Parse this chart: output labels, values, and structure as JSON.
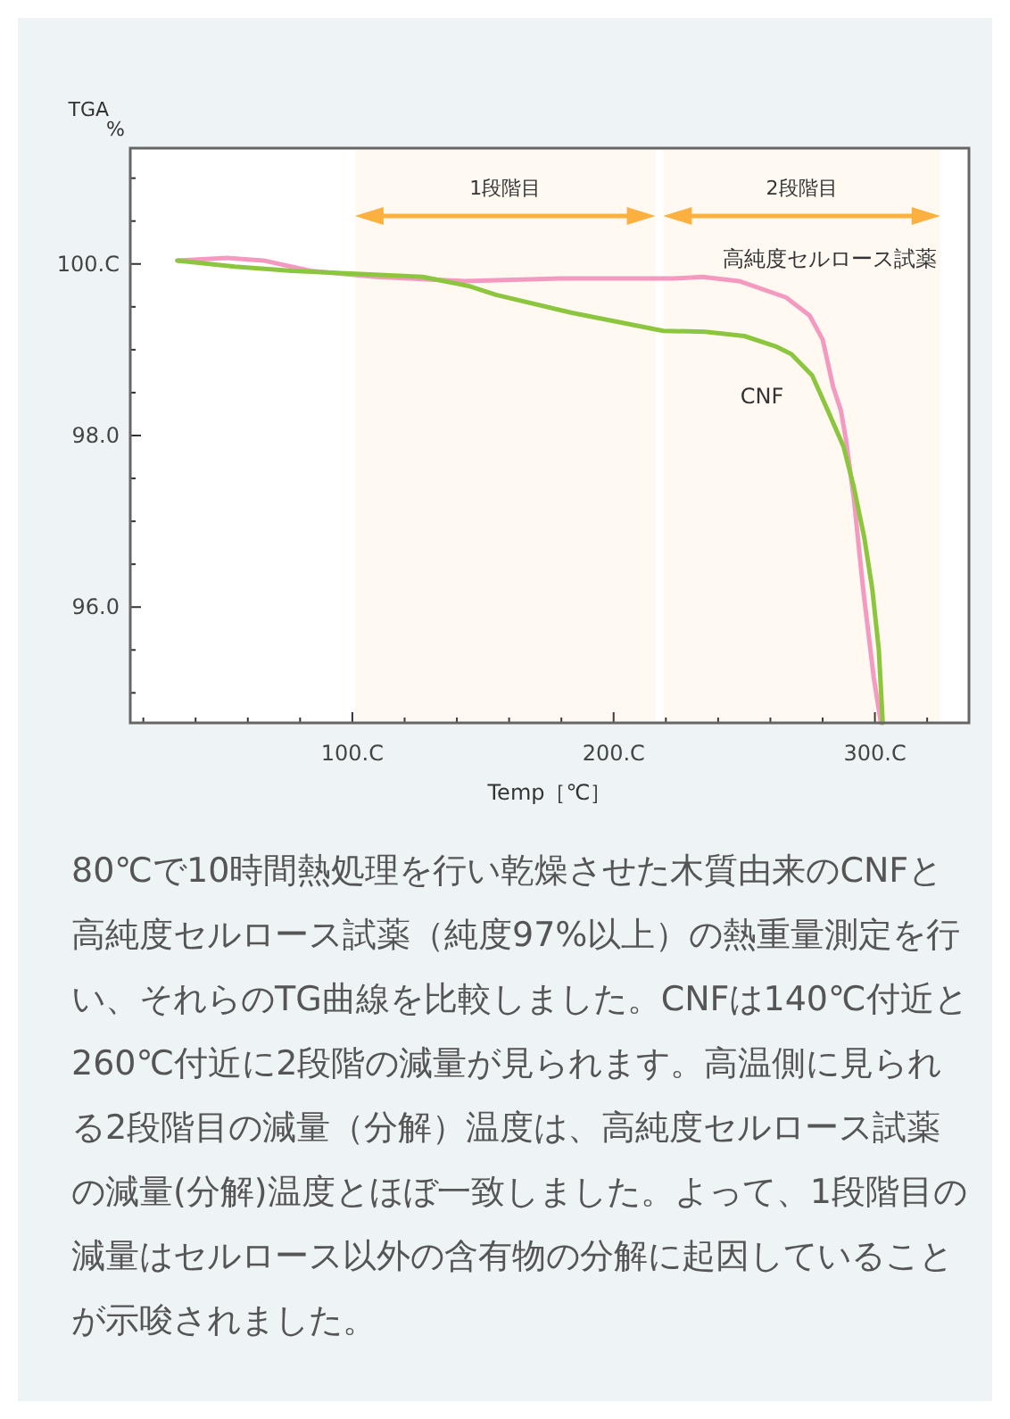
{
  "chart_data": {
    "type": "line",
    "xlabel": "Temp［℃］",
    "ylabel": "TGA\n%",
    "xlim": [
      15,
      336
    ],
    "ylim": [
      94.65,
      101.35
    ],
    "xticks": [
      {
        "value": 20,
        "label": null
      },
      {
        "value": 40,
        "label": null
      },
      {
        "value": 60,
        "label": null
      },
      {
        "value": 80,
        "label": null
      },
      {
        "value": 100,
        "label": "100.C"
      },
      {
        "value": 120,
        "label": null
      },
      {
        "value": 140,
        "label": null
      },
      {
        "value": 160,
        "label": null
      },
      {
        "value": 180,
        "label": null
      },
      {
        "value": 200,
        "label": "200.C"
      },
      {
        "value": 220,
        "label": null
      },
      {
        "value": 240,
        "label": null
      },
      {
        "value": 260,
        "label": null
      },
      {
        "value": 280,
        "label": null
      },
      {
        "value": 300,
        "label": "300.C"
      },
      {
        "value": 320,
        "label": null
      }
    ],
    "yticks": [
      {
        "value": 95,
        "label": null
      },
      {
        "value": 95.5,
        "label": null
      },
      {
        "value": 96,
        "label": "96.0"
      },
      {
        "value": 96.5,
        "label": null
      },
      {
        "value": 97,
        "label": null
      },
      {
        "value": 97.5,
        "label": null
      },
      {
        "value": 98,
        "label": "98.0"
      },
      {
        "value": 98.5,
        "label": null
      },
      {
        "value": 99,
        "label": null
      },
      {
        "value": 99.5,
        "label": null
      },
      {
        "value": 100,
        "label": "100.C"
      },
      {
        "value": 100.5,
        "label": null
      },
      {
        "value": 101,
        "label": null
      }
    ],
    "grid": false,
    "legend": false,
    "marker": "none",
    "line_style": "solid",
    "series": [
      {
        "name": "高純度セルロース試薬",
        "color": "#f49ac1",
        "x": [
          33,
          52,
          66,
          84,
          109,
          143,
          180,
          223,
          234,
          248,
          266,
          275,
          280,
          284,
          287,
          289,
          292,
          295.5,
          299.6,
          302.3
        ],
        "values": [
          100.04,
          100.07,
          100.04,
          99.92,
          99.85,
          99.8,
          99.83,
          99.83,
          99.85,
          99.8,
          99.61,
          99.4,
          99.12,
          98.57,
          98.29,
          97.94,
          97.25,
          96.21,
          95.17,
          94.65
        ]
      },
      {
        "name": "CNF",
        "color": "#8cc63f",
        "x": [
          33,
          55,
          77,
          127,
          145,
          155,
          184,
          219,
          235,
          250,
          262,
          268,
          276,
          282,
          288,
          292,
          296,
          299,
          301.5,
          303
        ],
        "values": [
          100.04,
          99.97,
          99.92,
          99.85,
          99.74,
          99.64,
          99.43,
          99.22,
          99.21,
          99.16,
          99.04,
          98.95,
          98.7,
          98.29,
          97.87,
          97.39,
          96.8,
          96.21,
          95.5,
          94.65
        ]
      }
    ],
    "bands": [
      {
        "axis": "x",
        "from": 101,
        "to": 216,
        "label": "1段階目",
        "color": "#fbb040"
      },
      {
        "axis": "x",
        "from": 219,
        "to": 325,
        "label": "2段階目",
        "color": "#fbb040"
      }
    ],
    "annotations": [
      "80℃で10時間熱処理を行い乾燥させた木質由来のCNFと高純度セルロース試薬（純度97%以上）の熱重量測定を行い、それらのTG曲線を比較しました。CNFは140℃付近と260℃付近に2段階の減量が見られます。高温側に見られる2段階目の減量（分解）温度は、高純度セルロース試薬の減量(分解)温度とほぼ一致しました。よって、1段階目の減量はセルロース以外の含有物の分解に起因していることが示唆されました。"
    ]
  }
}
